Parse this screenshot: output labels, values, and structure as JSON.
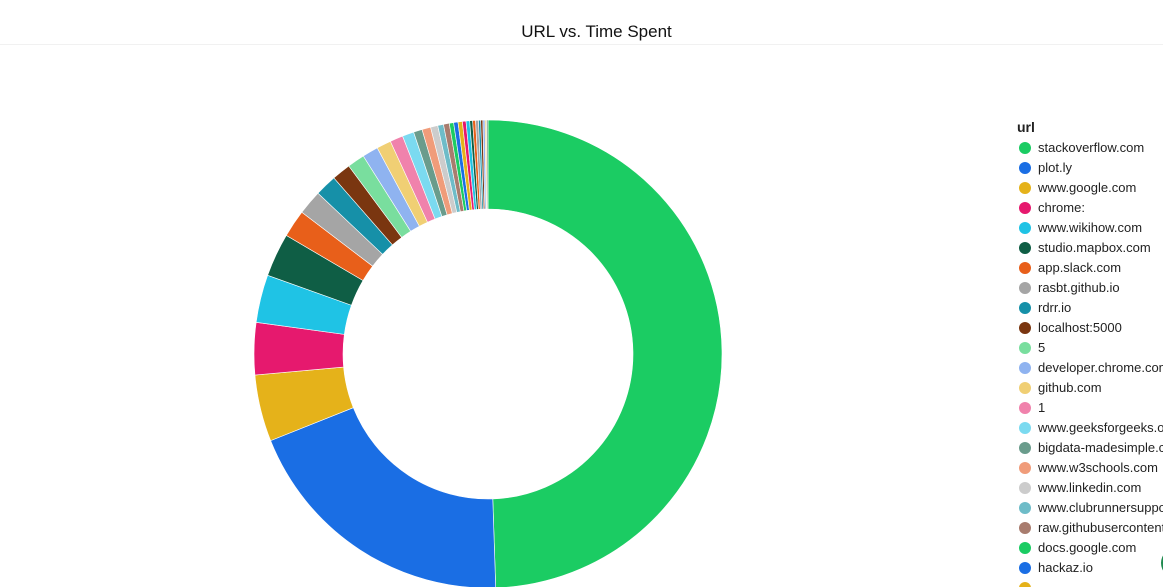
{
  "chart_data": {
    "type": "pie",
    "title": "URL vs. Time Spent",
    "legend": {
      "title": "url",
      "placement": "right"
    },
    "slices": [
      {
        "label": "stackoverflow.com",
        "value": 49.5,
        "color": "#1bcc63"
      },
      {
        "label": "plot.ly",
        "value": 19.5,
        "color": "#1a6ee4"
      },
      {
        "label": "www.google.com",
        "value": 4.6,
        "color": "#e5b21a"
      },
      {
        "label": "chrome:",
        "value": 3.6,
        "color": "#e6196e"
      },
      {
        "label": "www.wikihow.com",
        "value": 3.3,
        "color": "#1fc3e5"
      },
      {
        "label": "studio.mapbox.com",
        "value": 3.0,
        "color": "#0f5e45"
      },
      {
        "label": "app.slack.com",
        "value": 1.9,
        "color": "#e85f1a"
      },
      {
        "label": "rasbt.github.io",
        "value": 1.7,
        "color": "#a5a5a5"
      },
      {
        "label": "rdrr.io",
        "value": 1.5,
        "color": "#1690a8"
      },
      {
        "label": "localhost:5000",
        "value": 1.3,
        "color": "#7a3610"
      },
      {
        "label": "5",
        "value": 1.2,
        "color": "#79de9e"
      },
      {
        "label": "developer.chrome.com",
        "value": 1.1,
        "color": "#8fb3f0"
      },
      {
        "label": "github.com",
        "value": 1.0,
        "color": "#f0cf74"
      },
      {
        "label": "1",
        "value": 0.9,
        "color": "#f082ac"
      },
      {
        "label": "www.geeksforgeeks.org",
        "value": 0.8,
        "color": "#7bdaf0"
      },
      {
        "label": "bigdata-madesimple.com",
        "value": 0.6,
        "color": "#6a9c8c"
      },
      {
        "label": "www.w3schools.com",
        "value": 0.6,
        "color": "#f09c7a"
      },
      {
        "label": "www.linkedin.com",
        "value": 0.5,
        "color": "#cccccc"
      },
      {
        "label": "www.clubrunnersupport.com",
        "value": 0.4,
        "color": "#6ebcc8"
      },
      {
        "label": "raw.githubusercontent.com",
        "value": 0.4,
        "color": "#a87c6e"
      },
      {
        "label": "docs.google.com",
        "value": 0.3,
        "color": "#1bcc63"
      },
      {
        "label": "hackaz.io",
        "value": 0.3,
        "color": "#1a6ee4"
      },
      {
        "label": "",
        "value": 0.3,
        "color": "#e5b21a"
      },
      {
        "label": "",
        "value": 0.25,
        "color": "#e6196e"
      },
      {
        "label": "",
        "value": 0.25,
        "color": "#1fc3e5"
      },
      {
        "label": "",
        "value": 0.2,
        "color": "#0f5e45"
      },
      {
        "label": "",
        "value": 0.2,
        "color": "#e85f1a"
      },
      {
        "label": "",
        "value": 0.2,
        "color": "#a5a5a5"
      },
      {
        "label": "",
        "value": 0.15,
        "color": "#1690a8"
      },
      {
        "label": "",
        "value": 0.15,
        "color": "#7a3610"
      },
      {
        "label": "",
        "value": 0.15,
        "color": "#8fb3f0"
      },
      {
        "label": "",
        "value": 0.1,
        "color": "#f0cf74"
      },
      {
        "label": "",
        "value": 0.1,
        "color": "#6a9c8c"
      }
    ],
    "legend_entries": [
      {
        "label": "stackoverflow.com",
        "color": "#1bcc63"
      },
      {
        "label": "plot.ly",
        "color": "#1a6ee4"
      },
      {
        "label": "www.google.com",
        "color": "#e5b21a"
      },
      {
        "label": "chrome:",
        "color": "#e6196e"
      },
      {
        "label": "www.wikihow.com",
        "color": "#1fc3e5"
      },
      {
        "label": "studio.mapbox.com",
        "color": "#0f5e45"
      },
      {
        "label": "app.slack.com",
        "color": "#e85f1a"
      },
      {
        "label": "rasbt.github.io",
        "color": "#a5a5a5"
      },
      {
        "label": "rdrr.io",
        "color": "#1690a8"
      },
      {
        "label": "localhost:5000",
        "color": "#7a3610"
      },
      {
        "label": "5",
        "color": "#79de9e"
      },
      {
        "label": "developer.chrome.com",
        "color": "#8fb3f0"
      },
      {
        "label": "github.com",
        "color": "#f0cf74"
      },
      {
        "label": "1",
        "color": "#f082ac"
      },
      {
        "label": "www.geeksforgeeks.org",
        "color": "#7bdaf0"
      },
      {
        "label": "bigdata-madesimple.com",
        "color": "#6a9c8c"
      },
      {
        "label": "www.w3schools.com",
        "color": "#f09c7a"
      },
      {
        "label": "www.linkedin.com",
        "color": "#cccccc"
      },
      {
        "label": "www.clubrunnersupport.com",
        "color": "#6ebcc8"
      },
      {
        "label": "raw.githubusercontent.com",
        "color": "#a87c6e"
      },
      {
        "label": "docs.google.com",
        "color": "#1bcc63"
      },
      {
        "label": "hackaz.io",
        "color": "#1a6ee4"
      },
      {
        "label": "",
        "color": "#e5b21a"
      }
    ]
  }
}
